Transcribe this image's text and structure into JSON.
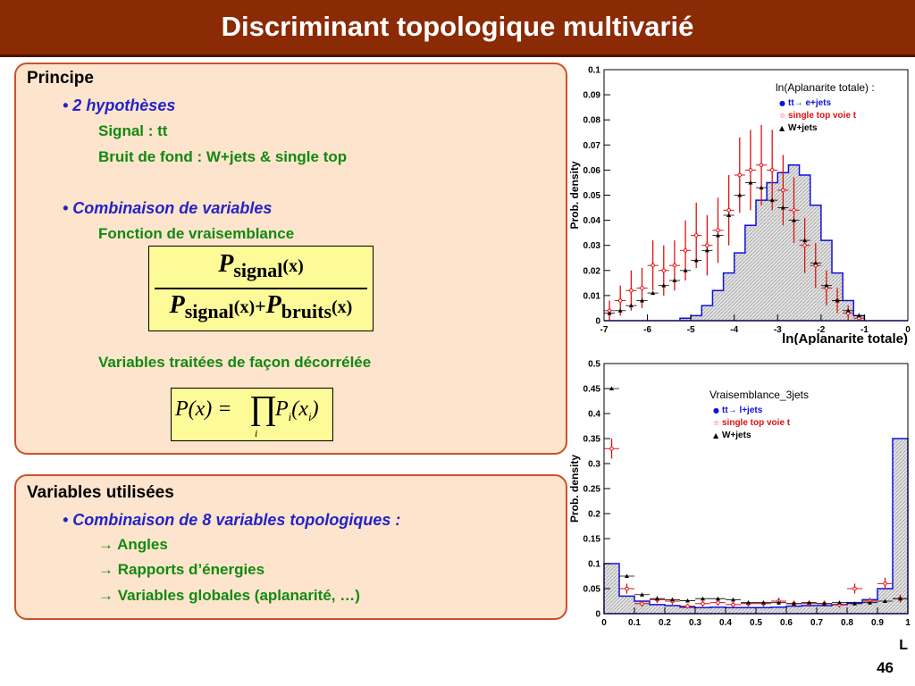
{
  "title": "Discriminant topologique multivarié",
  "box1": {
    "heading": "Principe",
    "bullet1": "• 2 hypothèses",
    "signal": "Signal : tt",
    "background": "Bruit de fond : W+jets & single top",
    "bullet2": "• Combinaison de variables",
    "likelihood": "Fonction de vraisemblance",
    "decorrelated": "Variables traitées de façon décorrélée"
  },
  "formula1": {
    "P": "P",
    "signal_sub": "signal",
    "bruits_sub": "bruits",
    "arg": "(x)",
    "plus": "+"
  },
  "formula2": {
    "lhs": "P(x) =",
    "prod": "∏",
    "prod_sub": "i",
    "rhs": "P",
    "rhs_sub": "i",
    "rhs_arg": "(x",
    "rhs_arg_sub": "i",
    "close": ")"
  },
  "box2": {
    "heading": "Variables utilisées",
    "bullet": "• Combinaison de 8 variables topologiques :",
    "item1": "→ Angles",
    "item2": "→ Rapports d’énergies",
    "item3": "→ Variables globales (aplanarité, …)"
  },
  "page_number": "46",
  "chart_data": [
    {
      "type": "histogram",
      "title": "ln(Aplanarite totale) :",
      "xlabel": "ln(Aplanarite totale)",
      "ylabel": "Prob. density",
      "xlim": [
        -7,
        0
      ],
      "ylim": [
        0,
        0.1
      ],
      "xticks": [
        "-7",
        "-6",
        "-5",
        "-4",
        "-3",
        "-2",
        "-1",
        "0"
      ],
      "yticks": [
        "0",
        "0.01",
        "0.02",
        "0.03",
        "0.04",
        "0.05",
        "0.06",
        "0.07",
        "0.08",
        "0.09",
        "0.1"
      ],
      "grid": false,
      "legend_position": "top-right",
      "colors": {
        "signal": "#1010e0",
        "single_top": "#e01010",
        "wjets": "#000000",
        "hatch": "#aaaaaa"
      },
      "series": [
        {
          "name": "tt→ e+jets",
          "style": "filled-hatched-histogram",
          "x": [
            -6.875,
            -6.625,
            -6.375,
            -6.125,
            -5.875,
            -5.625,
            -5.375,
            -5.125,
            -4.875,
            -4.625,
            -4.375,
            -4.125,
            -3.875,
            -3.625,
            -3.375,
            -3.125,
            -2.875,
            -2.625,
            -2.375,
            -2.125,
            -1.875,
            -1.625,
            -1.375,
            -1.125,
            -0.875,
            -0.625,
            -0.375,
            -0.125
          ],
          "values": [
            0,
            0,
            0,
            0,
            0,
            0,
            0,
            0.001,
            0.002,
            0.006,
            0.012,
            0.019,
            0.027,
            0.038,
            0.048,
            0.055,
            0.059,
            0.062,
            0.058,
            0.046,
            0.032,
            0.019,
            0.008,
            0.002,
            0,
            0,
            0,
            0
          ]
        },
        {
          "name": "single top voie t",
          "style": "error-bars",
          "x": [
            -6.875,
            -6.625,
            -6.375,
            -6.125,
            -5.875,
            -5.625,
            -5.375,
            -5.125,
            -4.875,
            -4.625,
            -4.375,
            -4.125,
            -3.875,
            -3.625,
            -3.375,
            -3.125,
            -2.875,
            -2.625,
            -2.375,
            -2.125,
            -1.875,
            -1.625,
            -1.375,
            -1.125,
            -0.875,
            -0.625,
            -0.375,
            -0.125
          ],
          "values": [
            0.004,
            0.008,
            0.012,
            0.013,
            0.022,
            0.02,
            0.022,
            0.028,
            0.034,
            0.03,
            0.036,
            0.044,
            0.058,
            0.06,
            0.062,
            0.06,
            0.052,
            0.044,
            0.03,
            0.022,
            0.013,
            0.008,
            0.003,
            0.001,
            0,
            0,
            0,
            0
          ],
          "errors": [
            0.004,
            0.006,
            0.008,
            0.008,
            0.01,
            0.01,
            0.01,
            0.012,
            0.013,
            0.012,
            0.013,
            0.014,
            0.015,
            0.016,
            0.016,
            0.016,
            0.014,
            0.013,
            0.011,
            0.009,
            0.007,
            0.005,
            0.003,
            0.002,
            0,
            0,
            0,
            0
          ]
        },
        {
          "name": "W+jets",
          "style": "markers",
          "x": [
            -6.875,
            -6.625,
            -6.375,
            -6.125,
            -5.875,
            -5.625,
            -5.375,
            -5.125,
            -4.875,
            -4.625,
            -4.375,
            -4.125,
            -3.875,
            -3.625,
            -3.375,
            -3.125,
            -2.875,
            -2.625,
            -2.375,
            -2.125,
            -1.875,
            -1.625,
            -1.375,
            -1.125,
            -0.875,
            -0.625,
            -0.375,
            -0.125
          ],
          "values": [
            0.003,
            0.004,
            0.006,
            0.008,
            0.011,
            0.014,
            0.016,
            0.02,
            0.024,
            0.028,
            0.034,
            0.042,
            0.05,
            0.055,
            0.053,
            0.048,
            0.045,
            0.04,
            0.032,
            0.023,
            0.014,
            0.008,
            0.004,
            0.002,
            0,
            0,
            0,
            0
          ]
        }
      ]
    },
    {
      "type": "histogram",
      "title": "Vraisemblance_3jets",
      "xlabel": "L",
      "ylabel": "Prob. density",
      "xlim": [
        0,
        1
      ],
      "ylim": [
        0,
        0.5
      ],
      "xticks": [
        "0",
        "0.1",
        "0.2",
        "0.3",
        "0.4",
        "0.5",
        "0.6",
        "0.7",
        "0.8",
        "0.9",
        "1"
      ],
      "yticks": [
        "0",
        "0.05",
        "0.1",
        "0.15",
        "0.2",
        "0.25",
        "0.3",
        "0.35",
        "0.4",
        "0.45",
        "0.5"
      ],
      "grid": false,
      "legend_position": "top-right",
      "colors": {
        "signal": "#1010e0",
        "single_top": "#e01010",
        "wjets": "#000000",
        "hatch": "#aaaaaa"
      },
      "series": [
        {
          "name": "tt→ l+jets",
          "style": "filled-hatched-histogram",
          "x": [
            0.025,
            0.075,
            0.125,
            0.175,
            0.225,
            0.275,
            0.325,
            0.375,
            0.425,
            0.475,
            0.525,
            0.575,
            0.625,
            0.675,
            0.725,
            0.775,
            0.825,
            0.875,
            0.925,
            0.975
          ],
          "values": [
            0.1,
            0.035,
            0.025,
            0.018,
            0.016,
            0.013,
            0.012,
            0.013,
            0.012,
            0.012,
            0.012,
            0.013,
            0.015,
            0.016,
            0.016,
            0.018,
            0.022,
            0.028,
            0.05,
            0.35
          ]
        },
        {
          "name": "single top voie t",
          "style": "error-bars",
          "x": [
            0.025,
            0.075,
            0.125,
            0.175,
            0.225,
            0.275,
            0.325,
            0.375,
            0.425,
            0.475,
            0.525,
            0.575,
            0.625,
            0.675,
            0.725,
            0.775,
            0.825,
            0.875,
            0.925,
            0.975
          ],
          "values": [
            0.33,
            0.05,
            0.02,
            0.028,
            0.025,
            0.015,
            0.02,
            0.022,
            0.018,
            0.02,
            0.02,
            0.025,
            0.02,
            0.02,
            0.02,
            0.018,
            0.05,
            0.025,
            0.06,
            0.03
          ],
          "errors": [
            0.02,
            0.01,
            0.006,
            0.007,
            0.007,
            0.005,
            0.006,
            0.006,
            0.006,
            0.006,
            0.006,
            0.007,
            0.006,
            0.006,
            0.006,
            0.006,
            0.01,
            0.007,
            0.012,
            0.008
          ]
        },
        {
          "name": "W+jets",
          "style": "markers",
          "x": [
            0.025,
            0.075,
            0.125,
            0.175,
            0.225,
            0.275,
            0.325,
            0.375,
            0.425,
            0.475,
            0.525,
            0.575,
            0.625,
            0.675,
            0.725,
            0.775,
            0.825,
            0.875,
            0.925,
            0.975
          ],
          "values": [
            0.45,
            0.075,
            0.038,
            0.03,
            0.028,
            0.026,
            0.03,
            0.03,
            0.028,
            0.022,
            0.022,
            0.022,
            0.02,
            0.022,
            0.02,
            0.022,
            0.02,
            0.022,
            0.025,
            0.03
          ]
        }
      ]
    }
  ]
}
